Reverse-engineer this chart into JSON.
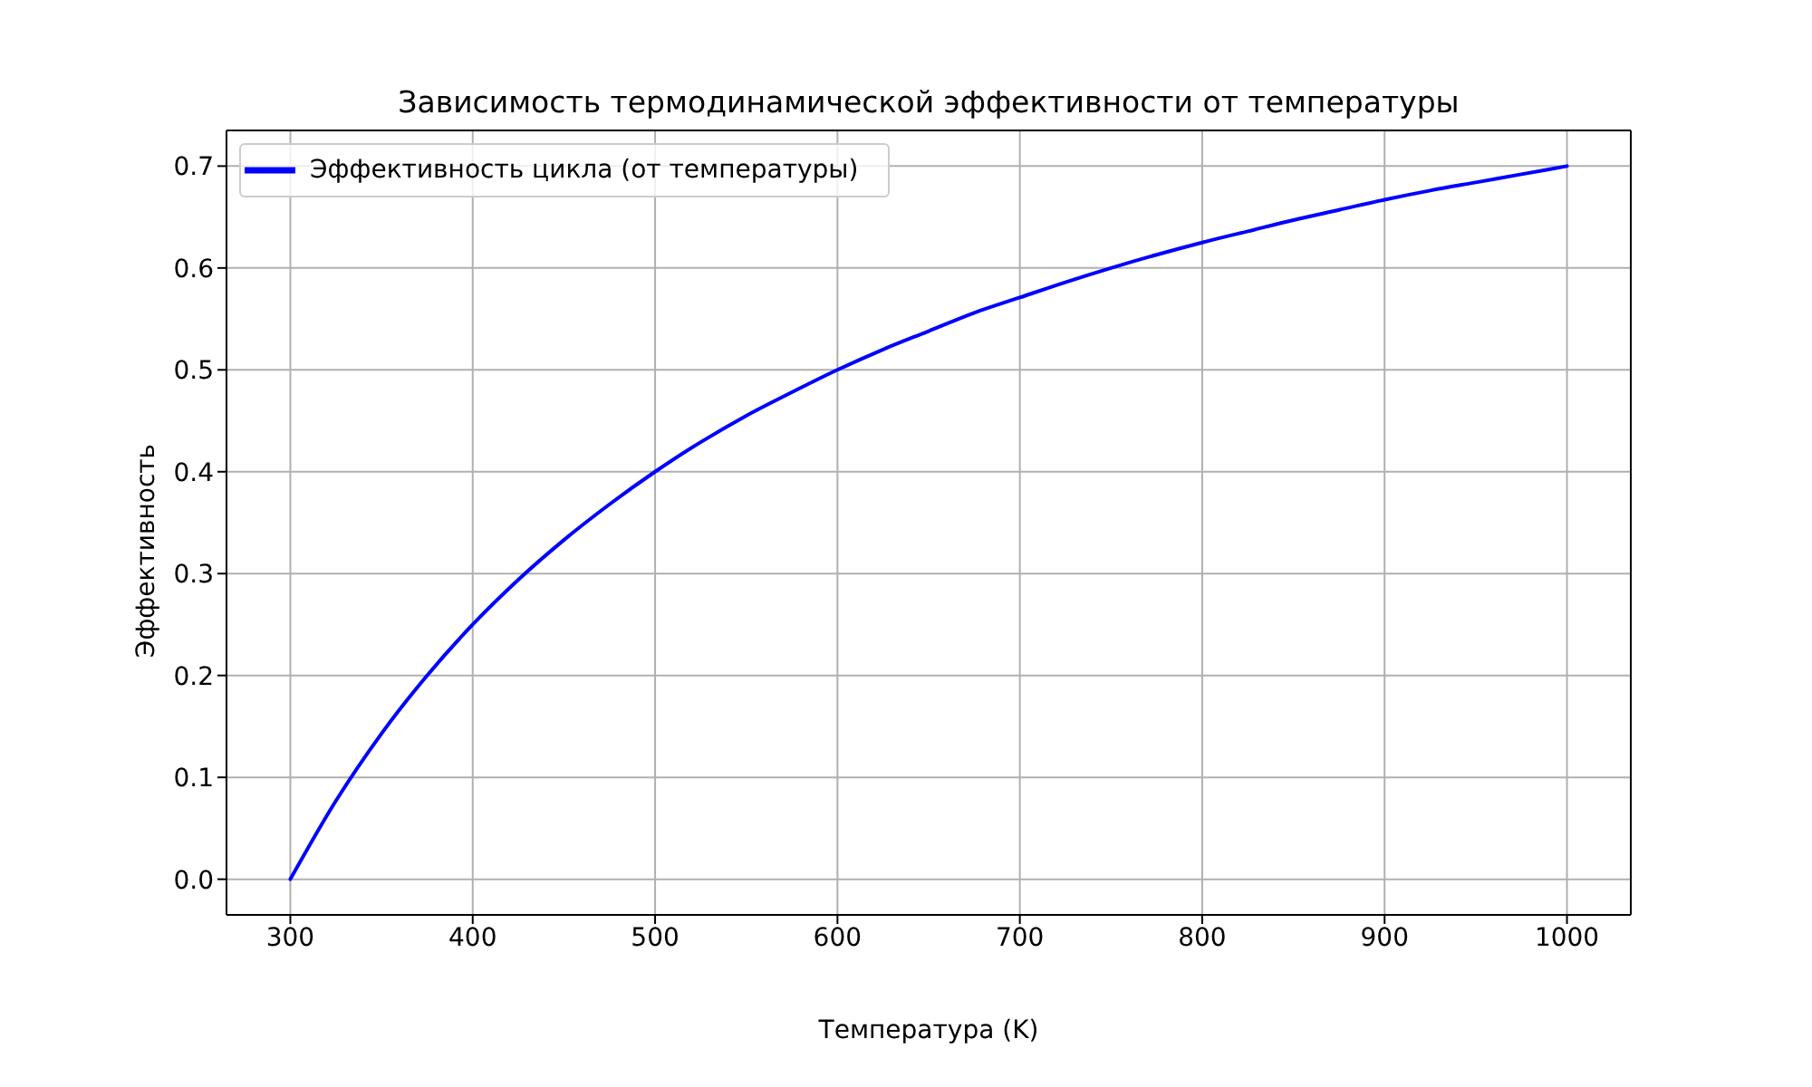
{
  "chart_data": {
    "type": "line",
    "title": "Зависимость термодинамической эффективности от температуры",
    "xlabel": "Температура (K)",
    "ylabel": "Эффективность",
    "x": [
      300,
      325,
      350,
      375,
      400,
      425,
      450,
      475,
      500,
      525,
      550,
      575,
      600,
      625,
      650,
      675,
      700,
      725,
      750,
      775,
      800,
      825,
      850,
      875,
      900,
      925,
      950,
      975,
      1000
    ],
    "series": [
      {
        "name": "Эффективность цикла (от температуры)",
        "color": "#0000ff",
        "values": [
          0,
          0.077,
          0.143,
          0.2,
          0.25,
          0.294,
          0.333,
          0.368,
          0.4,
          0.429,
          0.455,
          0.478,
          0.5,
          0.52,
          0.538,
          0.556,
          0.571,
          0.586,
          0.6,
          0.613,
          0.625,
          0.636,
          0.647,
          0.657,
          0.667,
          0.676,
          0.684,
          0.692,
          0.7
        ]
      }
    ],
    "xlim": [
      265,
      1035
    ],
    "ylim": [
      -0.035,
      0.735
    ],
    "xticks": [
      300,
      400,
      500,
      600,
      700,
      800,
      900,
      1000
    ],
    "yticks": [
      {
        "value": 0,
        "label": "0.0"
      },
      0.1,
      0.2,
      0.3,
      0.4,
      0.5,
      0.6,
      0.7
    ],
    "grid": true,
    "legend": "top left",
    "marker": "none",
    "line_style": "solid"
  }
}
